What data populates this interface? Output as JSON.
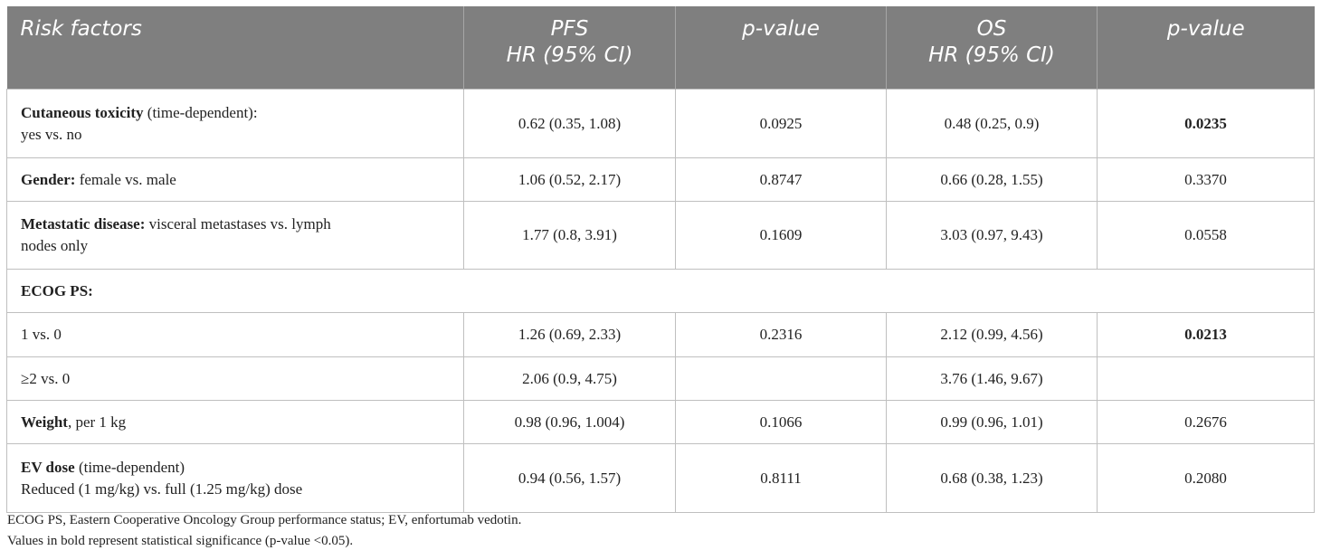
{
  "table": {
    "headers": {
      "risk_factors": "Risk factors",
      "pfs_line1": "PFS",
      "pfs_line2": "HR (95% CI)",
      "pfs_p": "p-value",
      "os_line1": "OS",
      "os_line2": "HR (95% CI)",
      "os_p": "p-value"
    },
    "rows": [
      {
        "bold": "Cutaneous toxicity",
        "rest": " (time-dependent):",
        "line2": "yes vs. no",
        "pfs_hr": "0.62 (0.35, 1.08)",
        "pfs_p": "0.0925",
        "os_hr": "0.48 (0.25, 0.9)",
        "os_p": "0.0235"
      },
      {
        "bold": "Gender:",
        "rest": " female vs. male",
        "pfs_hr": "1.06 (0.52, 2.17)",
        "pfs_p": "0.8747",
        "os_hr": "0.66 (0.28, 1.55)",
        "os_p": "0.3370"
      },
      {
        "bold": "Metastatic disease:",
        "rest": " visceral metastases vs. lymph",
        "line2": "nodes only",
        "pfs_hr": "1.77 (0.8, 3.91)",
        "pfs_p": "0.1609",
        "os_hr": "3.03 (0.97, 9.43)",
        "os_p": "0.0558"
      },
      {
        "bold": "ECOG PS:"
      },
      {
        "label": "1 vs. 0",
        "pfs_hr": "1.26 (0.69, 2.33)",
        "pfs_p": "0.2316",
        "os_hr": "2.12 (0.99, 4.56)",
        "os_p": "0.0213"
      },
      {
        "label": "≥2 vs. 0",
        "pfs_hr": "2.06 (0.9, 4.75)",
        "pfs_p": "",
        "os_hr": "3.76 (1.46, 9.67)",
        "os_p": ""
      },
      {
        "bold": "Weight",
        "rest": ", per 1 kg",
        "pfs_hr": "0.98 (0.96, 1.004)",
        "pfs_p": "0.1066",
        "os_hr": "0.99 (0.96, 1.01)",
        "os_p": "0.2676"
      },
      {
        "bold": "EV dose",
        "rest": " (time-dependent)",
        "line2": "Reduced (1 mg/kg) vs. full (1.25 mg/kg) dose",
        "pfs_hr": "0.94 (0.56, 1.57)",
        "pfs_p": "0.8111",
        "os_hr": "0.68 (0.38, 1.23)",
        "os_p": "0.2080"
      }
    ]
  },
  "footnotes": {
    "abbrev": "ECOG PS, Eastern Cooperative Oncology Group performance status; EV, enfortumab vedotin.",
    "bold_note": "Values in bold represent statistical significance (p-value <0.05)."
  },
  "colors": {
    "header_bg": "#7f7f7f",
    "header_text": "#ffffff",
    "border": "#bfbfbf"
  }
}
